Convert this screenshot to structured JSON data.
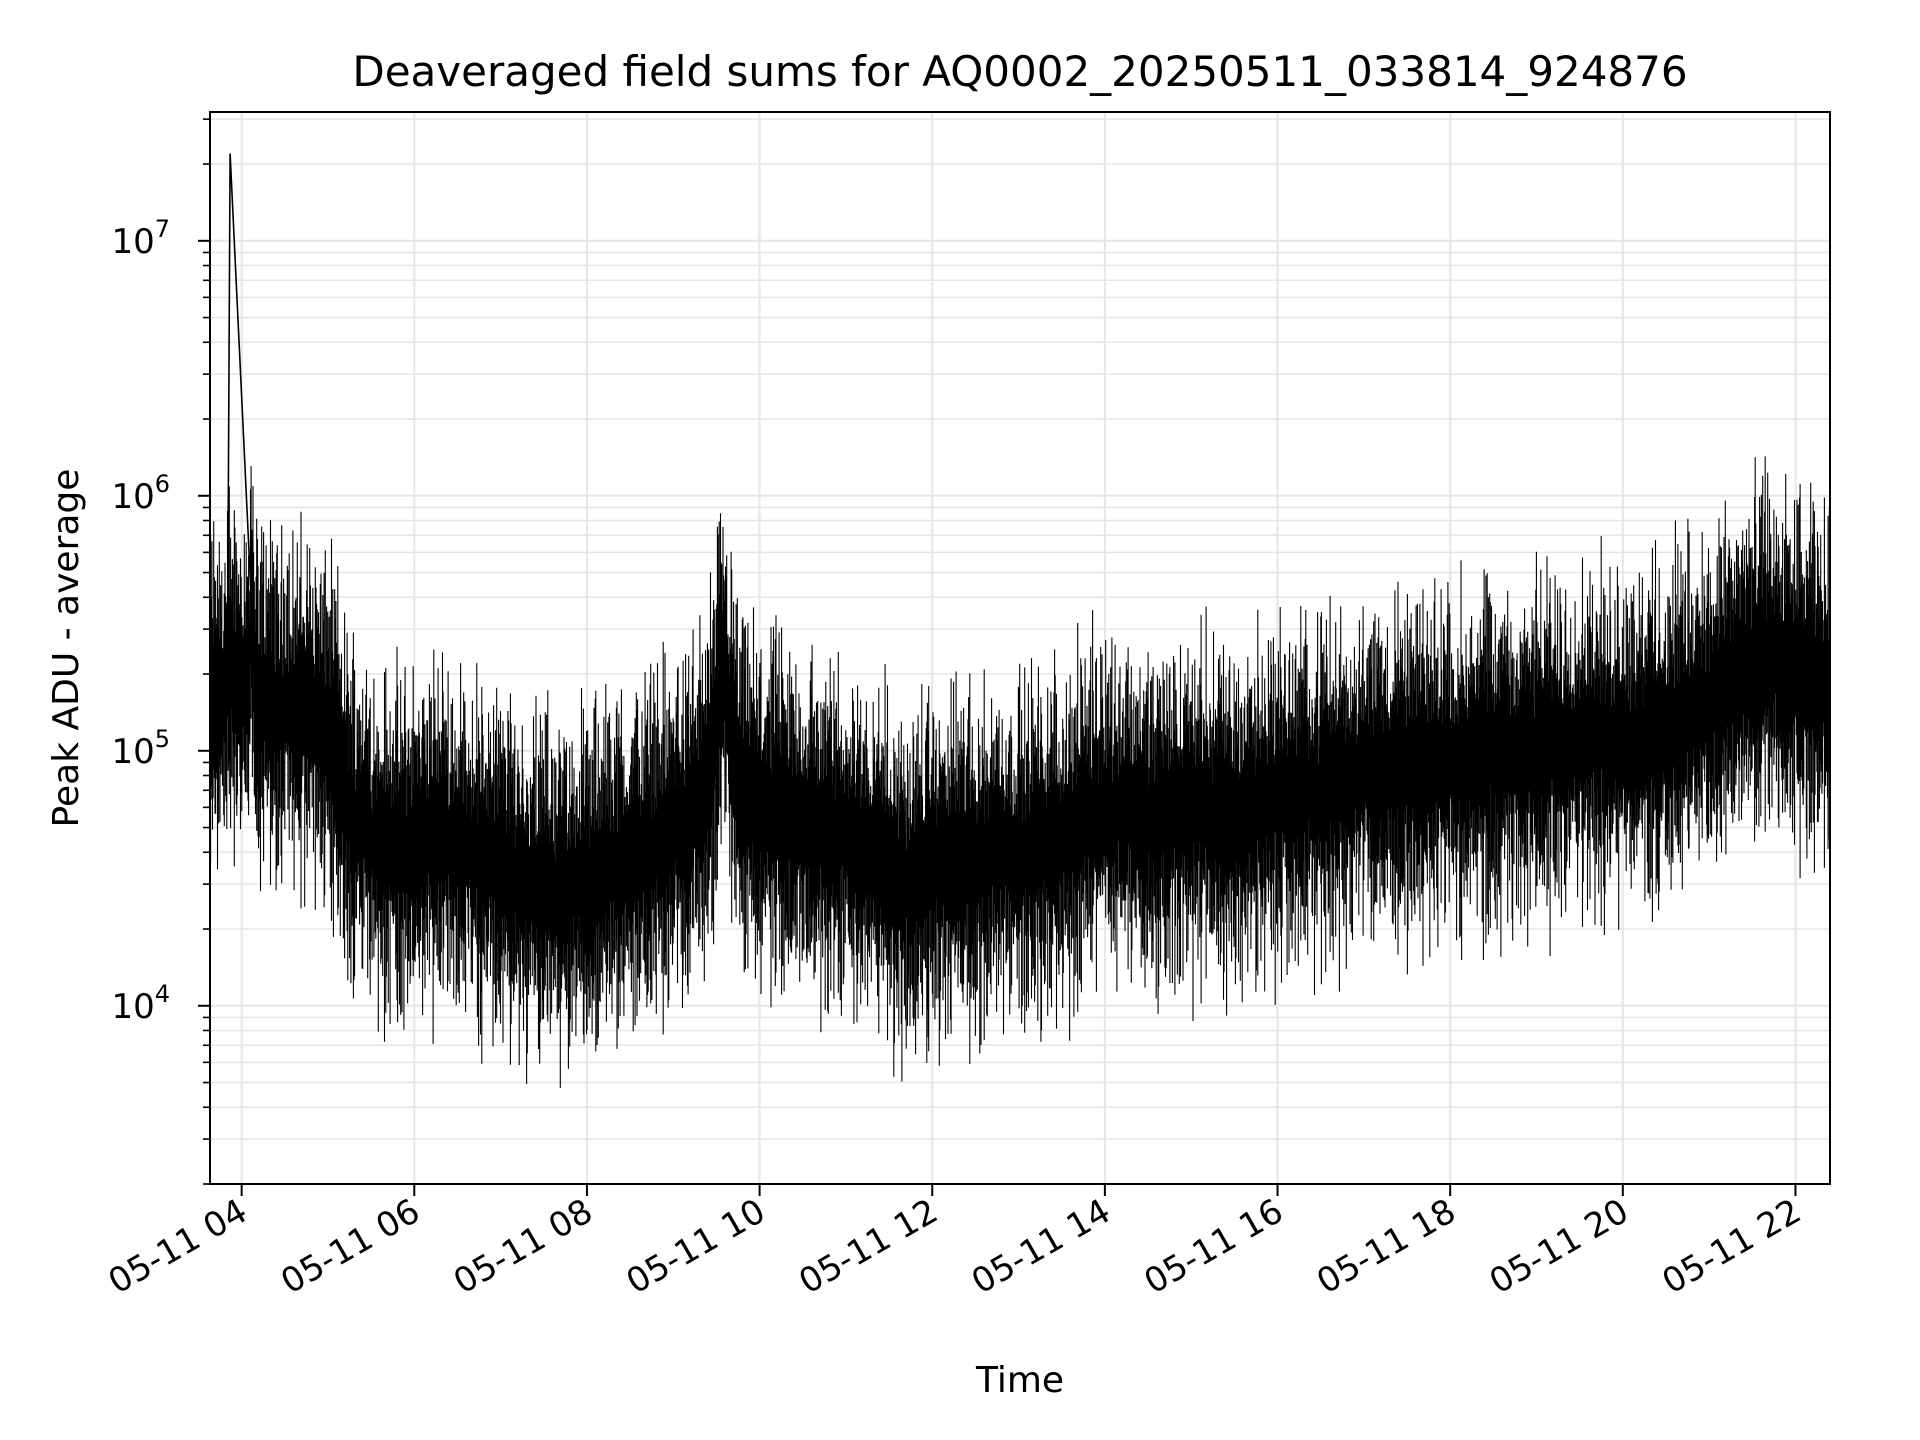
{
  "chart_data": {
    "type": "line",
    "title": "Deaveraged field sums for AQ0002_20250511_033814_924876",
    "xlabel": "Time",
    "ylabel": "Peak ADU - average",
    "x_ticks": [
      "05-11 04",
      "05-11 06",
      "05-11 08",
      "05-11 10",
      "05-11 12",
      "05-11 14",
      "05-11 16",
      "05-11 18",
      "05-11 20",
      "05-11 22"
    ],
    "y_scale": "log",
    "y_ticks": [
      {
        "base": "10",
        "exp": "4",
        "value": 10000
      },
      {
        "base": "10",
        "exp": "5",
        "value": 100000
      },
      {
        "base": "10",
        "exp": "6",
        "value": 1000000
      },
      {
        "base": "10",
        "exp": "7",
        "value": 10000000
      }
    ],
    "xlim": [
      "2025-05-11T03:38",
      "2025-05-11T22:24"
    ],
    "ylim": [
      2000,
      32000000
    ],
    "grid": true,
    "line_color": "#000000",
    "grid_color": "#e6e6e6",
    "series": [
      {
        "x": [
          "2025-05-11T03:38",
          "2025-05-11T03:50",
          "2025-05-11T03:52",
          "2025-05-11T04:10",
          "2025-05-11T04:30",
          "2025-05-11T04:50",
          "2025-05-11T05:05",
          "2025-05-11T05:15",
          "2025-05-11T05:30",
          "2025-05-11T05:45",
          "2025-05-11T06:00",
          "2025-05-11T06:20",
          "2025-05-11T06:40",
          "2025-05-11T07:00",
          "2025-05-11T07:20",
          "2025-05-11T07:40",
          "2025-05-11T08:00",
          "2025-05-11T08:20",
          "2025-05-11T08:40",
          "2025-05-11T09:00",
          "2025-05-11T09:20",
          "2025-05-11T09:35",
          "2025-05-11T09:45",
          "2025-05-11T10:00",
          "2025-05-11T10:30",
          "2025-05-11T11:00",
          "2025-05-11T11:20",
          "2025-05-11T11:40",
          "2025-05-11T12:00",
          "2025-05-11T12:30",
          "2025-05-11T13:00",
          "2025-05-11T13:30",
          "2025-05-11T14:00",
          "2025-05-11T14:30",
          "2025-05-11T15:00",
          "2025-05-11T15:30",
          "2025-05-11T16:00",
          "2025-05-11T16:30",
          "2025-05-11T17:00",
          "2025-05-11T17:30",
          "2025-05-11T18:00",
          "2025-05-11T18:30",
          "2025-05-11T19:00",
          "2025-05-11T19:30",
          "2025-05-11T20:00",
          "2025-05-11T20:30",
          "2025-05-11T21:00",
          "2025-05-11T21:20",
          "2025-05-11T21:40",
          "2025-05-11T22:00",
          "2025-05-11T22:24"
        ],
        "y": [
          160000,
          170000,
          22000000,
          160000,
          150000,
          140000,
          110000,
          60000,
          45000,
          40000,
          42000,
          45000,
          40000,
          35000,
          30000,
          28000,
          30000,
          35000,
          40000,
          50000,
          60000,
          200000,
          70000,
          60000,
          50000,
          45000,
          40000,
          30000,
          35000,
          38000,
          40000,
          45000,
          60000,
          55000,
          60000,
          55000,
          65000,
          70000,
          80000,
          85000,
          90000,
          95000,
          100000,
          110000,
          110000,
          120000,
          150000,
          200000,
          250000,
          200000,
          180000
        ]
      }
    ]
  }
}
